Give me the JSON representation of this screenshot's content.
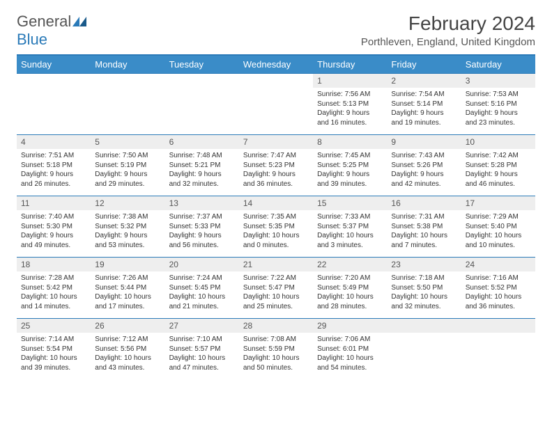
{
  "logo": {
    "textGray": "General",
    "textBlue": "Blue"
  },
  "header": {
    "title": "February 2024",
    "location": "Porthleven, England, United Kingdom"
  },
  "columns": [
    "Sunday",
    "Monday",
    "Tuesday",
    "Wednesday",
    "Thursday",
    "Friday",
    "Saturday"
  ],
  "colors": {
    "headerBg": "#3a8cc8",
    "borderTop": "#2a7ab8",
    "dayBg": "#eeeeee",
    "text": "#333333"
  },
  "weeks": [
    [
      null,
      null,
      null,
      null,
      {
        "day": "1",
        "sunrise": "Sunrise: 7:56 AM",
        "sunset": "Sunset: 5:13 PM",
        "daylight": "Daylight: 9 hours and 16 minutes."
      },
      {
        "day": "2",
        "sunrise": "Sunrise: 7:54 AM",
        "sunset": "Sunset: 5:14 PM",
        "daylight": "Daylight: 9 hours and 19 minutes."
      },
      {
        "day": "3",
        "sunrise": "Sunrise: 7:53 AM",
        "sunset": "Sunset: 5:16 PM",
        "daylight": "Daylight: 9 hours and 23 minutes."
      }
    ],
    [
      {
        "day": "4",
        "sunrise": "Sunrise: 7:51 AM",
        "sunset": "Sunset: 5:18 PM",
        "daylight": "Daylight: 9 hours and 26 minutes."
      },
      {
        "day": "5",
        "sunrise": "Sunrise: 7:50 AM",
        "sunset": "Sunset: 5:19 PM",
        "daylight": "Daylight: 9 hours and 29 minutes."
      },
      {
        "day": "6",
        "sunrise": "Sunrise: 7:48 AM",
        "sunset": "Sunset: 5:21 PM",
        "daylight": "Daylight: 9 hours and 32 minutes."
      },
      {
        "day": "7",
        "sunrise": "Sunrise: 7:47 AM",
        "sunset": "Sunset: 5:23 PM",
        "daylight": "Daylight: 9 hours and 36 minutes."
      },
      {
        "day": "8",
        "sunrise": "Sunrise: 7:45 AM",
        "sunset": "Sunset: 5:25 PM",
        "daylight": "Daylight: 9 hours and 39 minutes."
      },
      {
        "day": "9",
        "sunrise": "Sunrise: 7:43 AM",
        "sunset": "Sunset: 5:26 PM",
        "daylight": "Daylight: 9 hours and 42 minutes."
      },
      {
        "day": "10",
        "sunrise": "Sunrise: 7:42 AM",
        "sunset": "Sunset: 5:28 PM",
        "daylight": "Daylight: 9 hours and 46 minutes."
      }
    ],
    [
      {
        "day": "11",
        "sunrise": "Sunrise: 7:40 AM",
        "sunset": "Sunset: 5:30 PM",
        "daylight": "Daylight: 9 hours and 49 minutes."
      },
      {
        "day": "12",
        "sunrise": "Sunrise: 7:38 AM",
        "sunset": "Sunset: 5:32 PM",
        "daylight": "Daylight: 9 hours and 53 minutes."
      },
      {
        "day": "13",
        "sunrise": "Sunrise: 7:37 AM",
        "sunset": "Sunset: 5:33 PM",
        "daylight": "Daylight: 9 hours and 56 minutes."
      },
      {
        "day": "14",
        "sunrise": "Sunrise: 7:35 AM",
        "sunset": "Sunset: 5:35 PM",
        "daylight": "Daylight: 10 hours and 0 minutes."
      },
      {
        "day": "15",
        "sunrise": "Sunrise: 7:33 AM",
        "sunset": "Sunset: 5:37 PM",
        "daylight": "Daylight: 10 hours and 3 minutes."
      },
      {
        "day": "16",
        "sunrise": "Sunrise: 7:31 AM",
        "sunset": "Sunset: 5:38 PM",
        "daylight": "Daylight: 10 hours and 7 minutes."
      },
      {
        "day": "17",
        "sunrise": "Sunrise: 7:29 AM",
        "sunset": "Sunset: 5:40 PM",
        "daylight": "Daylight: 10 hours and 10 minutes."
      }
    ],
    [
      {
        "day": "18",
        "sunrise": "Sunrise: 7:28 AM",
        "sunset": "Sunset: 5:42 PM",
        "daylight": "Daylight: 10 hours and 14 minutes."
      },
      {
        "day": "19",
        "sunrise": "Sunrise: 7:26 AM",
        "sunset": "Sunset: 5:44 PM",
        "daylight": "Daylight: 10 hours and 17 minutes."
      },
      {
        "day": "20",
        "sunrise": "Sunrise: 7:24 AM",
        "sunset": "Sunset: 5:45 PM",
        "daylight": "Daylight: 10 hours and 21 minutes."
      },
      {
        "day": "21",
        "sunrise": "Sunrise: 7:22 AM",
        "sunset": "Sunset: 5:47 PM",
        "daylight": "Daylight: 10 hours and 25 minutes."
      },
      {
        "day": "22",
        "sunrise": "Sunrise: 7:20 AM",
        "sunset": "Sunset: 5:49 PM",
        "daylight": "Daylight: 10 hours and 28 minutes."
      },
      {
        "day": "23",
        "sunrise": "Sunrise: 7:18 AM",
        "sunset": "Sunset: 5:50 PM",
        "daylight": "Daylight: 10 hours and 32 minutes."
      },
      {
        "day": "24",
        "sunrise": "Sunrise: 7:16 AM",
        "sunset": "Sunset: 5:52 PM",
        "daylight": "Daylight: 10 hours and 36 minutes."
      }
    ],
    [
      {
        "day": "25",
        "sunrise": "Sunrise: 7:14 AM",
        "sunset": "Sunset: 5:54 PM",
        "daylight": "Daylight: 10 hours and 39 minutes."
      },
      {
        "day": "26",
        "sunrise": "Sunrise: 7:12 AM",
        "sunset": "Sunset: 5:56 PM",
        "daylight": "Daylight: 10 hours and 43 minutes."
      },
      {
        "day": "27",
        "sunrise": "Sunrise: 7:10 AM",
        "sunset": "Sunset: 5:57 PM",
        "daylight": "Daylight: 10 hours and 47 minutes."
      },
      {
        "day": "28",
        "sunrise": "Sunrise: 7:08 AM",
        "sunset": "Sunset: 5:59 PM",
        "daylight": "Daylight: 10 hours and 50 minutes."
      },
      {
        "day": "29",
        "sunrise": "Sunrise: 7:06 AM",
        "sunset": "Sunset: 6:01 PM",
        "daylight": "Daylight: 10 hours and 54 minutes."
      },
      null,
      null
    ]
  ]
}
